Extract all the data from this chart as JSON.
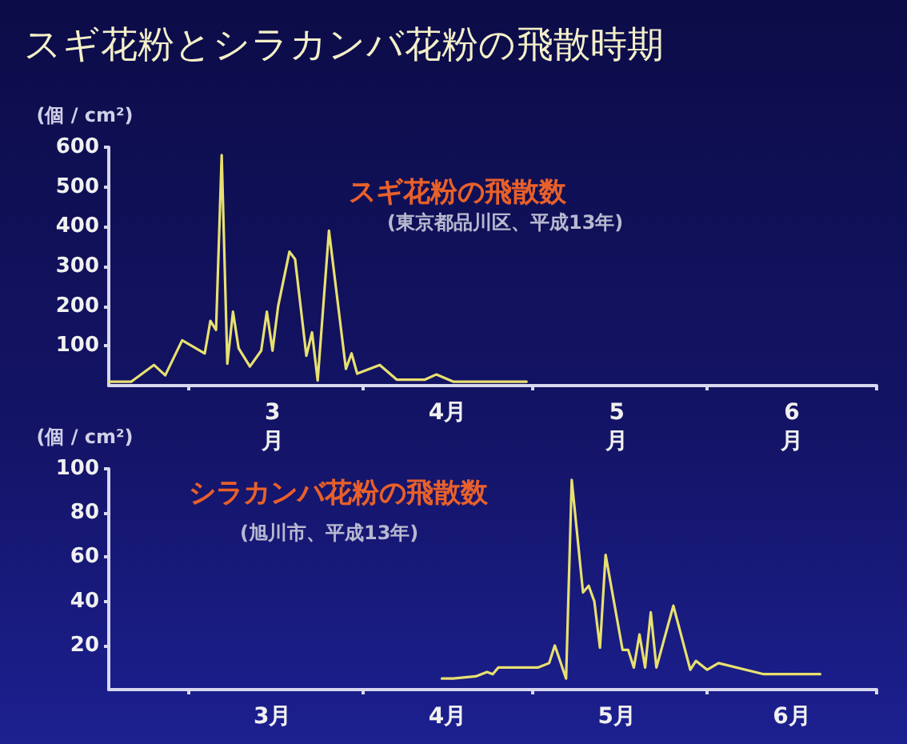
{
  "chart_data": [
    {
      "type": "line",
      "title": "スギ花粉とシラカンバ花粉の飛散時期",
      "ylabel": "(個 / cm²)",
      "annotations": [
        "スギ花粉の飛散数",
        "(東京都品川区、平成13年)"
      ],
      "x": [
        "--02-15",
        "--02-19",
        "--02-23",
        "--02-25",
        "--02-28",
        "--03-04",
        "--03-05",
        "--03-06",
        "--03-07",
        "--03-08",
        "--03-09",
        "--03-10",
        "--03-12",
        "--03-14",
        "--03-15",
        "--03-16",
        "--03-17",
        "--03-19",
        "--03-20",
        "--03-22",
        "--03-23",
        "--03-24",
        "--03-26",
        "--03-29",
        "--03-30",
        "--03-31",
        "--04-04",
        "--04-07",
        "--04-12",
        "--04-14",
        "--04-17",
        "--04-30"
      ],
      "series": [
        {
          "color": "#e8e070",
          "values": [
            10,
            10,
            52,
            26,
            114,
            81,
            163,
            140,
            580,
            55,
            186,
            94,
            48,
            88,
            186,
            88,
            200,
            337,
            318,
            75,
            134,
            13,
            390,
            42,
            81,
            30,
            52,
            15,
            15,
            28,
            10,
            10
          ]
        }
      ],
      "xlim": [
        "--02-15",
        "--07-01"
      ],
      "xticks": [
        {
          "value": "--03-01",
          "label": null
        },
        {
          "value": "--03-16",
          "label": "3\n月"
        },
        {
          "value": "--04-01",
          "label": null
        },
        {
          "value": "--04-16",
          "label": "4月"
        },
        {
          "value": "--05-01",
          "label": null
        },
        {
          "value": "--05-16",
          "label": "5\n月"
        },
        {
          "value": "--06-01",
          "label": null
        },
        {
          "value": "--06-16",
          "label": "6\n月"
        },
        {
          "value": "--07-01",
          "label": null
        }
      ],
      "ylim": [
        0,
        600
      ],
      "yticks": [
        100,
        200,
        300,
        400,
        500,
        600
      ],
      "grid": false,
      "marker": "none",
      "line_style": "solid"
    },
    {
      "type": "line",
      "ylabel": "(個 / cm²)",
      "annotations": [
        "シラカンバ花粉の飛散数",
        "(旭川市、平成13年)"
      ],
      "x": [
        "--04-15",
        "--04-17",
        "--04-21",
        "--04-23",
        "--04-24",
        "--04-25",
        "--05-02",
        "--05-04",
        "--05-05",
        "--05-07",
        "--05-08",
        "--05-10",
        "--05-11",
        "--05-12",
        "--05-13",
        "--05-14",
        "--05-17",
        "--05-18",
        "--05-19",
        "--05-20",
        "--05-21",
        "--05-22",
        "--05-23",
        "--05-26",
        "--05-29",
        "--05-30",
        "--06-01",
        "--06-03",
        "--06-11",
        "--06-21"
      ],
      "series": [
        {
          "color": "#e8e070",
          "values": [
            5,
            5,
            6,
            8,
            7,
            10,
            10,
            12,
            20,
            5,
            95,
            44,
            47,
            40,
            19,
            61,
            18,
            18,
            10,
            25,
            10,
            35,
            10,
            38,
            9,
            13,
            9,
            12,
            7,
            7
          ]
        }
      ],
      "xlim": [
        "--02-15",
        "--07-01"
      ],
      "xticks": [
        {
          "value": "--03-01",
          "label": null
        },
        {
          "value": "--03-16",
          "label": "3月"
        },
        {
          "value": "--04-01",
          "label": null
        },
        {
          "value": "--04-16",
          "label": "4月"
        },
        {
          "value": "--05-01",
          "label": null
        },
        {
          "value": "--05-16",
          "label": "5月"
        },
        {
          "value": "--06-01",
          "label": null
        },
        {
          "value": "--06-16",
          "label": "6月"
        },
        {
          "value": "--07-01",
          "label": null
        }
      ],
      "ylim": [
        0,
        100
      ],
      "yticks": [
        20,
        40,
        60,
        80,
        100
      ],
      "grid": false,
      "marker": "none",
      "line_style": "solid"
    }
  ]
}
